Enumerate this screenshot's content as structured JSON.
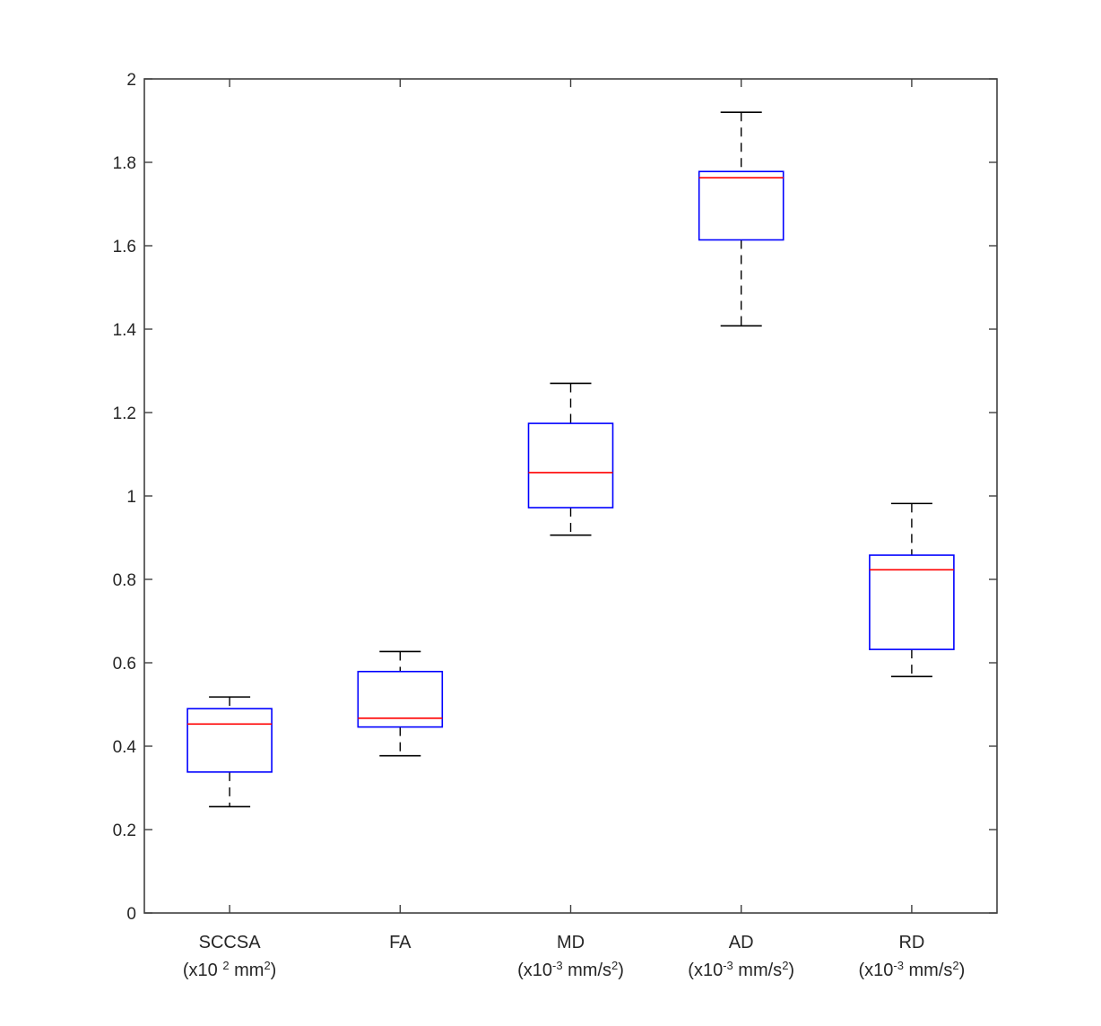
{
  "chart_data": {
    "type": "boxplot",
    "ylim": [
      0,
      2
    ],
    "yticks": [
      0,
      0.2,
      0.4,
      0.6,
      0.8,
      1,
      1.2,
      1.4,
      1.6,
      1.8,
      2
    ],
    "ytick_labels": [
      "0",
      "0.2",
      "0.4",
      "0.6",
      "0.8",
      "1",
      "1.2",
      "1.4",
      "1.6",
      "1.8",
      "2"
    ],
    "grid": false,
    "colors": {
      "box": "#0000ff",
      "median": "#ff0000",
      "whisker": "#000000",
      "axis": "#404040"
    },
    "categories": [
      {
        "name": "SCCSA",
        "unit": {
          "pre": "(x10 ",
          "sup1": "2",
          "mid": " mm",
          "sup2": "2",
          "post": ")"
        },
        "min": 0.255,
        "q1": 0.338,
        "median": 0.453,
        "q3": 0.49,
        "max": 0.518
      },
      {
        "name": "FA",
        "unit": null,
        "min": 0.377,
        "q1": 0.446,
        "median": 0.467,
        "q3": 0.579,
        "max": 0.627
      },
      {
        "name": "MD",
        "unit": {
          "pre": "(x10",
          "sup1": "-3",
          "mid": " mm/s",
          "sup2": "2",
          "post": ")"
        },
        "min": 0.906,
        "q1": 0.972,
        "median": 1.056,
        "q3": 1.174,
        "max": 1.27
      },
      {
        "name": "AD",
        "unit": {
          "pre": "(x10",
          "sup1": "-3",
          "mid": " mm/s",
          "sup2": "2",
          "post": ")"
        },
        "min": 1.408,
        "q1": 1.614,
        "median": 1.763,
        "q3": 1.778,
        "max": 1.92
      },
      {
        "name": "RD",
        "unit": {
          "pre": "(x10",
          "sup1": "-3",
          "mid": " mm/s",
          "sup2": "2",
          "post": ")"
        },
        "min": 0.567,
        "q1": 0.632,
        "median": 0.823,
        "q3": 0.858,
        "max": 0.982
      }
    ]
  }
}
